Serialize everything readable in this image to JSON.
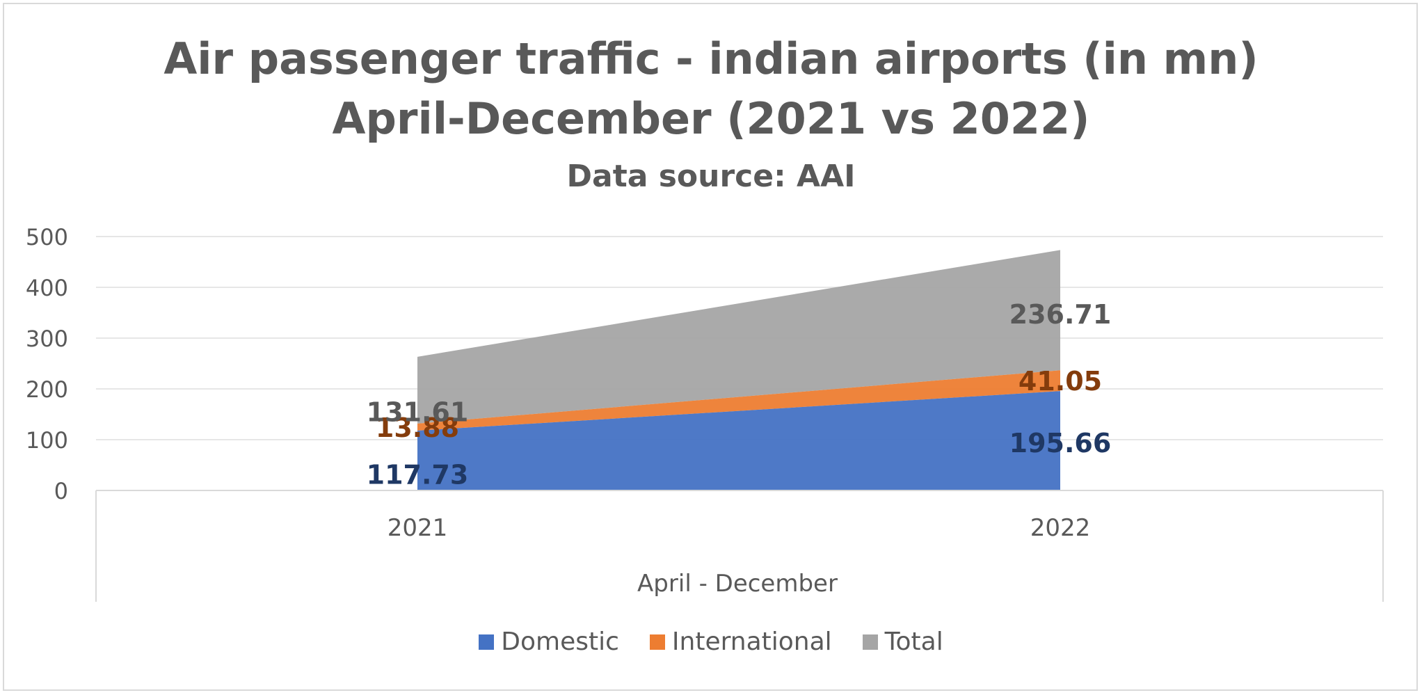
{
  "chart_data": {
    "type": "area",
    "title": "Air passenger traffic - indian airports (in mn)",
    "subtitle": "April-December (2021 vs 2022)",
    "source": "Data source: AAI",
    "xlabel": "April - December",
    "ylabel": "",
    "categories": [
      "2021",
      "2022"
    ],
    "ylim": [
      0,
      500
    ],
    "yticks": [
      "0",
      "100",
      "200",
      "300",
      "400",
      "500"
    ],
    "stacked": true,
    "grid": true,
    "legend_position": "bottom",
    "series": [
      {
        "name": "Domestic",
        "values": [
          117.73,
          195.66
        ],
        "labels": [
          "117.73",
          "195.66"
        ],
        "color": "#4472c4",
        "label_color": "#1f3864"
      },
      {
        "name": "International",
        "values": [
          13.88,
          41.05
        ],
        "labels": [
          "13.88",
          "41.05"
        ],
        "color": "#ed7d31",
        "label_color": "#843c0c"
      },
      {
        "name": "Total",
        "values": [
          131.61,
          236.71
        ],
        "labels": [
          "131.61",
          "236.71"
        ],
        "color": "#a5a5a5",
        "label_color": "#595959"
      }
    ]
  }
}
